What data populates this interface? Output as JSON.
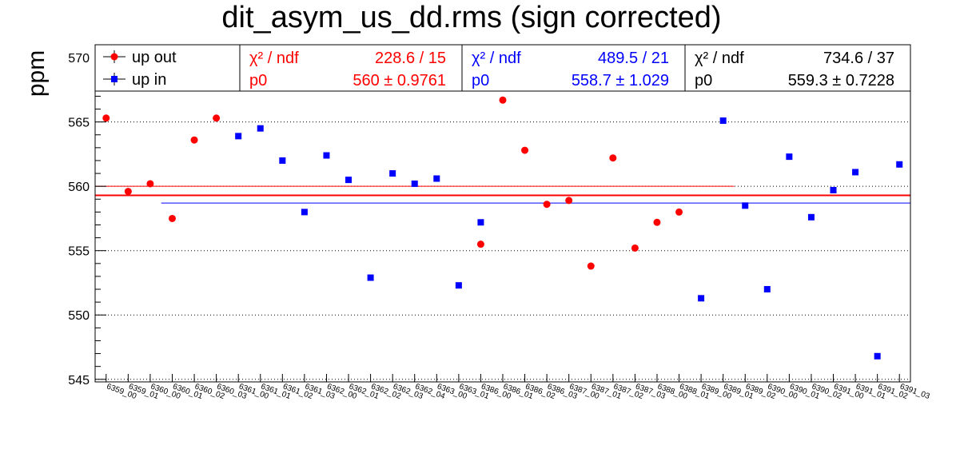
{
  "chart_data": {
    "type": "scatter",
    "title": "dit_asym_us_dd.rms (sign corrected)",
    "ylabel": "ppm",
    "xlabel": "",
    "ylim": [
      544.8,
      571.0
    ],
    "yticks": [
      545,
      550,
      555,
      560,
      565,
      570
    ],
    "categories": [
      "6359_00",
      "6359_01",
      "6360_00",
      "6360_01",
      "6360_02",
      "6360_03",
      "6361_00",
      "6361_01",
      "6361_02",
      "6361_03",
      "6362_00",
      "6362_01",
      "6362_02",
      "6362_03",
      "6362_04",
      "6363_00",
      "6363_01",
      "6386_00",
      "6386_01",
      "6386_02",
      "6386_03",
      "6387_00",
      "6387_01",
      "6387_02",
      "6387_03",
      "6388_00",
      "6388_01",
      "6389_00",
      "6389_01",
      "6389_02",
      "6390_00",
      "6390_01",
      "6390_02",
      "6391_00",
      "6391_01",
      "6391_02",
      "6391_03"
    ],
    "series": [
      {
        "name": "up out",
        "color": "#ff0000",
        "marker": "circle",
        "values": [
          565.3,
          559.6,
          560.2,
          557.5,
          563.6,
          565.3,
          null,
          null,
          null,
          null,
          null,
          null,
          null,
          null,
          null,
          null,
          null,
          555.5,
          566.7,
          562.8,
          558.6,
          558.9,
          553.8,
          562.2,
          555.2,
          557.2,
          558.0,
          null,
          null,
          null,
          null,
          null,
          null,
          null,
          null,
          null,
          null
        ]
      },
      {
        "name": "up in",
        "color": "#0000ff",
        "marker": "square",
        "values": [
          null,
          null,
          null,
          null,
          null,
          null,
          563.9,
          564.5,
          562.0,
          558.0,
          562.4,
          560.5,
          552.9,
          561.0,
          560.2,
          560.6,
          552.3,
          557.2,
          null,
          null,
          null,
          null,
          null,
          null,
          null,
          null,
          null,
          551.3,
          565.1,
          558.5,
          552.0,
          562.3,
          557.6,
          559.7,
          561.1,
          546.8,
          561.7
        ]
      }
    ],
    "fits": [
      {
        "color": "#ff0000",
        "value": 560.0,
        "x_from": 0,
        "x_to": 29
      },
      {
        "color": "#0000ff",
        "value": 558.7,
        "x_from": 3,
        "x_to": 37
      },
      {
        "color": "#ff0000",
        "value": 559.3,
        "x_from": 0,
        "x_to": 37,
        "thick": true
      }
    ],
    "grid": "horizontal-dotted",
    "legend": "top-left",
    "stats": [
      {
        "color": "#ff0000",
        "chi2_label": "χ² / ndf",
        "chi2_value": "228.6 / 15",
        "p0_label": "p0",
        "p0_value": "560 ± 0.9761"
      },
      {
        "color": "#0000ff",
        "chi2_label": "χ² / ndf",
        "chi2_value": "489.5 / 21",
        "p0_label": "p0",
        "p0_value": "558.7 ± 1.029"
      },
      {
        "color": "#000000",
        "chi2_label": "χ² / ndf",
        "chi2_value": "734.6 / 37",
        "p0_label": "p0",
        "p0_value": "559.3 ± 0.7228"
      }
    ]
  }
}
